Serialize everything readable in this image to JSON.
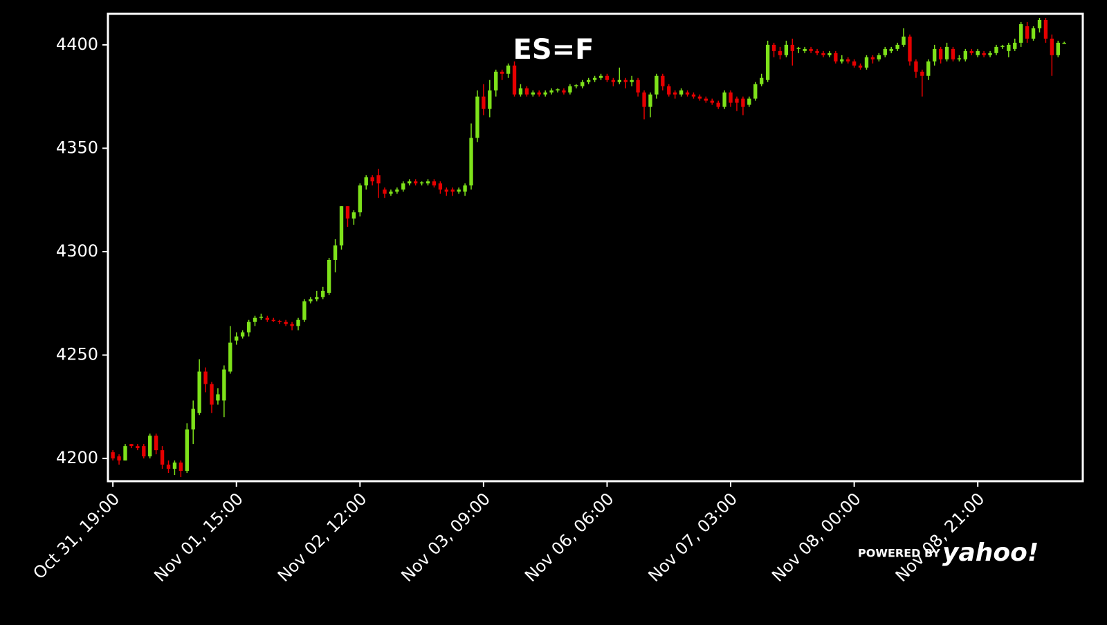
{
  "chart_data": {
    "type": "candlestick",
    "title": "ES=F",
    "watermark": {
      "prefix": "POWERED BY",
      "brand": "yahoo!"
    },
    "up_color": "#7ee21a",
    "down_color": "#e60000",
    "ylim": [
      4189,
      4415
    ],
    "yticks": [
      4200,
      4250,
      4300,
      4350,
      4400
    ],
    "xlim": [
      -0.8,
      157
    ],
    "xticks": [
      {
        "value": 0,
        "label": "Oct 31, 19:00"
      },
      {
        "value": 20,
        "label": "Nov 01, 15:00"
      },
      {
        "value": 40,
        "label": "Nov 02, 12:00"
      },
      {
        "value": 60,
        "label": "Nov 03, 09:00"
      },
      {
        "value": 80,
        "label": "Nov 06, 06:00"
      },
      {
        "value": 100,
        "label": "Nov 07, 03:00"
      },
      {
        "value": 120,
        "label": "Nov 08, 00:00"
      },
      {
        "value": 140,
        "label": "Nov 08, 21:00"
      }
    ],
    "open": [
      4203,
      4201,
      4199,
      4207,
      4206,
      4206,
      4201,
      4211,
      4204,
      4197,
      4195,
      4198,
      4194,
      4214,
      4222,
      4242,
      4236,
      4228,
      4228,
      4242,
      4257,
      4259,
      4261,
      4266,
      4268,
      4268,
      4267,
      4266.5,
      4266,
      4265,
      4264,
      4267,
      4276,
      4277,
      4278,
      4280,
      4296,
      4303,
      4322,
      4316,
      4319,
      4332,
      4336,
      4337,
      4330,
      4328,
      4329,
      4330,
      4333,
      4334,
      4333,
      4333,
      4334,
      4333,
      4330,
      4330,
      4329,
      4329,
      4332,
      4355,
      4375,
      4369,
      4378,
      4387,
      4386,
      4390,
      4376,
      4379,
      4376,
      4377,
      4376,
      4377,
      4378,
      4378,
      4377,
      4380,
      4380,
      4382,
      4383,
      4384,
      4385,
      4383,
      4382,
      4383,
      4382,
      4383,
      4377,
      4370,
      4376,
      4385,
      4380,
      4377,
      4376,
      4377,
      4376,
      4375,
      4374,
      4373,
      4372,
      4370,
      4377,
      4374,
      4374,
      4371,
      4374,
      4381,
      4383,
      4400,
      4397,
      4395,
      4400,
      4398,
      4397,
      4398,
      4397,
      4396,
      4395,
      4396,
      4392,
      4393,
      4392,
      4390,
      4389,
      4394,
      4393,
      4395,
      4397,
      4398,
      4400,
      4404,
      4392,
      4387,
      4385,
      4392,
      4398,
      4393,
      4398,
      4393,
      4393,
      4397,
      4395,
      4396,
      4395,
      4396,
      4399,
      4397,
      4398,
      4401,
      4409,
      4403,
      4408,
      4412,
      4403,
      4395,
      4401
    ],
    "high": [
      4204,
      4202,
      4207,
      4207,
      4207,
      4207,
      4212,
      4212,
      4206,
      4199,
      4199,
      4199,
      4217,
      4228,
      4248,
      4244,
      4237,
      4234,
      4245,
      4264,
      4261,
      4262,
      4267,
      4269,
      4270,
      4269,
      4268,
      4267,
      4267,
      4266,
      4268,
      4277,
      4278,
      4281,
      4283,
      4297,
      4306,
      4322,
      4322,
      4320,
      4333,
      4337,
      4337,
      4340,
      4331,
      4330,
      4331,
      4334,
      4335,
      4335,
      4334,
      4335,
      4335,
      4334,
      4331,
      4331,
      4331,
      4333,
      4362,
      4378,
      4381,
      4383,
      4388,
      4388,
      4391,
      4392,
      4381,
      4380,
      4378,
      4378,
      4378,
      4379,
      4379,
      4379,
      4381,
      4381,
      4383,
      4384,
      4385,
      4386,
      4386,
      4384,
      4389,
      4384,
      4385,
      4384,
      4378,
      4377,
      4386,
      4386,
      4381,
      4378,
      4379,
      4378,
      4377,
      4376,
      4375,
      4374,
      4373,
      4378,
      4378,
      4375,
      4375,
      4375,
      4382,
      4386,
      4402,
      4401,
      4399,
      4402,
      4403,
      4399,
      4399,
      4399,
      4398,
      4397,
      4397,
      4397,
      4395,
      4394,
      4393,
      4391,
      4395,
      4395,
      4396,
      4399,
      4399,
      4401,
      4408,
      4405,
      4393,
      4388,
      4393,
      4400,
      4399,
      4401,
      4399,
      4395,
      4398,
      4398,
      4398,
      4397,
      4397,
      4400,
      4400,
      4401,
      4403,
      4411,
      4411,
      4409,
      4413,
      4413,
      4405,
      4402,
      4401.5
    ],
    "low": [
      4199,
      4197,
      4199,
      4205,
      4204,
      4200,
      4200,
      4202,
      4195,
      4193,
      4192,
      4191,
      4193,
      4207,
      4221,
      4232,
      4222,
      4226,
      4220,
      4241,
      4255,
      4258,
      4259,
      4264,
      4267,
      4266,
      4266,
      4265,
      4264,
      4262,
      4262,
      4266,
      4275,
      4276,
      4277,
      4279,
      4290,
      4301,
      4312,
      4313,
      4317,
      4330,
      4332,
      4326,
      4326,
      4327,
      4328,
      4329,
      4332,
      4332,
      4332,
      4332,
      4331,
      4328,
      4327,
      4327,
      4328,
      4327,
      4330,
      4353,
      4366,
      4365,
      4375,
      4383,
      4384,
      4375,
      4375,
      4375,
      4375,
      4375,
      4375,
      4376,
      4377,
      4376,
      4376,
      4379,
      4379,
      4381,
      4382,
      4383,
      4382,
      4380,
      4381,
      4379,
      4380,
      4375,
      4364,
      4365,
      4374,
      4378,
      4375,
      4374,
      4375,
      4375,
      4374,
      4373,
      4372,
      4371,
      4369,
      4369,
      4370,
      4368,
      4366,
      4370,
      4373,
      4380,
      4382,
      4394,
      4393,
      4394,
      4390,
      4396,
      4396,
      4396,
      4395,
      4394,
      4394,
      4391,
      4391,
      4391,
      4389,
      4388,
      4388,
      4391,
      4392,
      4394,
      4396,
      4397,
      4399,
      4390,
      4384,
      4375,
      4383,
      4390,
      4391,
      4392,
      4392,
      4392,
      4392,
      4395,
      4394,
      4394,
      4394,
      4395,
      4398,
      4394,
      4397,
      4399,
      4401,
      4402,
      4406,
      4401,
      4385,
      4394,
      4400.5
    ],
    "close": [
      4200,
      4199,
      4206,
      4206,
      4205,
      4201,
      4211,
      4204,
      4197,
      4195,
      4198,
      4194,
      4214,
      4224,
      4242,
      4236,
      4226,
      4231,
      4243,
      4256,
      4259,
      4261,
      4266,
      4268,
      4268.5,
      4267,
      4266.5,
      4266,
      4265,
      4264,
      4267,
      4276,
      4277,
      4278,
      4281,
      4296,
      4303,
      4322,
      4316,
      4319,
      4332,
      4336,
      4334,
      4333,
      4328,
      4329,
      4330,
      4333,
      4334,
      4333,
      4333.5,
      4334,
      4332,
      4330,
      4329,
      4329,
      4330,
      4332,
      4355,
      4375,
      4369,
      4378,
      4387,
      4386,
      4390,
      4376,
      4379,
      4376,
      4377,
      4376,
      4377,
      4378,
      4378.5,
      4377,
      4380,
      4380.5,
      4382,
      4383,
      4384,
      4385,
      4383,
      4382,
      4383,
      4382,
      4383,
      4377,
      4370,
      4376,
      4385,
      4380,
      4376,
      4376,
      4378,
      4376,
      4375,
      4374,
      4373,
      4372,
      4370,
      4377,
      4372,
      4372,
      4370,
      4374,
      4381,
      4384,
      4400,
      4397,
      4395,
      4400,
      4397,
      4398.5,
      4398,
      4397,
      4396,
      4395,
      4396,
      4392,
      4393,
      4392,
      4390,
      4389,
      4394,
      4393,
      4395,
      4398,
      4398,
      4400,
      4404,
      4392,
      4387,
      4385,
      4392,
      4398,
      4393,
      4399,
      4393,
      4393.5,
      4397,
      4396,
      4397,
      4395,
      4396,
      4399,
      4399.5,
      4400,
      4401,
      4410,
      4403,
      4408,
      4412,
      4403,
      4395,
      4401,
      4401
    ]
  }
}
